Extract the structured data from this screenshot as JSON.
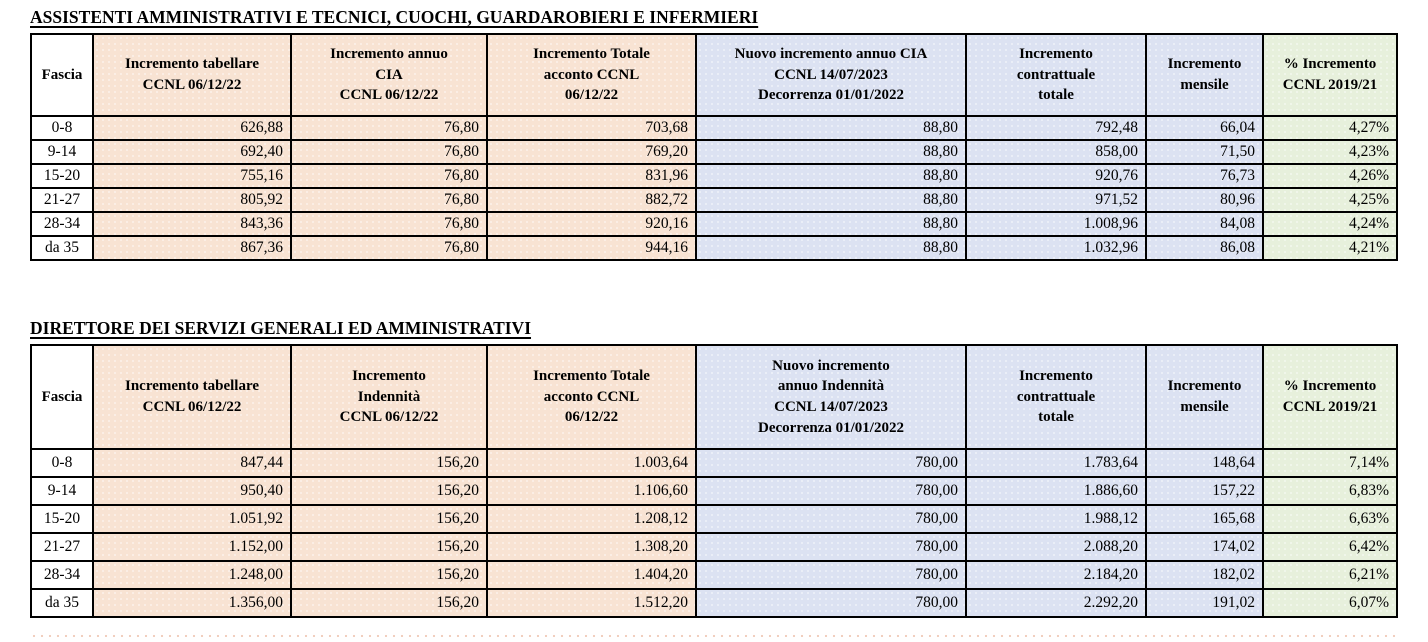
{
  "colors": {
    "peach": "#f8e3d3",
    "blue": "#dce2f2",
    "green": "#e7f0dc",
    "white": "#ffffff",
    "border": "#000000"
  },
  "tables": [
    {
      "title": "ASSISTENTI AMMINISTRATIVI E TECNICI, CUOCHI, GUARDAROBIERI E INFERMIERI",
      "columns": [
        {
          "label": "Fascia",
          "bg": "white"
        },
        {
          "label": "Incremento tabellare\nCCNL 06/12/22",
          "bg": "peach"
        },
        {
          "label": "Incremento annuo\nCIA\nCCNL 06/12/22",
          "bg": "peach"
        },
        {
          "label": "Incremento Totale\nacconto CCNL\n06/12/22",
          "bg": "peach"
        },
        {
          "label": "Nuovo incremento annuo CIA\nCCNL 14/07/2023\nDecorrenza 01/01/2022",
          "bg": "blue"
        },
        {
          "label": "Incremento\ncontrattuale\ntotale",
          "bg": "blue"
        },
        {
          "label": "Incremento\nmensile",
          "bg": "blue"
        },
        {
          "label": "% Incremento\nCCNL 2019/21",
          "bg": "green"
        }
      ],
      "rows": [
        [
          "0-8",
          "626,88",
          "76,80",
          "703,68",
          "88,80",
          "792,48",
          "66,04",
          "4,27%"
        ],
        [
          "9-14",
          "692,40",
          "76,80",
          "769,20",
          "88,80",
          "858,00",
          "71,50",
          "4,23%"
        ],
        [
          "15-20",
          "755,16",
          "76,80",
          "831,96",
          "88,80",
          "920,76",
          "76,73",
          "4,26%"
        ],
        [
          "21-27",
          "805,92",
          "76,80",
          "882,72",
          "88,80",
          "971,52",
          "80,96",
          "4,25%"
        ],
        [
          "28-34",
          "843,36",
          "76,80",
          "920,16",
          "88,80",
          "1.008,96",
          "84,08",
          "4,24%"
        ],
        [
          "da 35",
          "867,36",
          "76,80",
          "944,16",
          "88,80",
          "1.032,96",
          "86,08",
          "4,21%"
        ]
      ]
    },
    {
      "title": "DIRETTORE DEI SERVIZI GENERALI ED AMMINISTRATIVI",
      "columns": [
        {
          "label": "Fascia",
          "bg": "white"
        },
        {
          "label": "Incremento tabellare\nCCNL 06/12/22",
          "bg": "peach"
        },
        {
          "label": "Incremento\nIndennità\nCCNL 06/12/22",
          "bg": "peach"
        },
        {
          "label": "Incremento Totale\nacconto CCNL\n06/12/22",
          "bg": "peach"
        },
        {
          "label": "Nuovo incremento\nannuo Indennità\nCCNL 14/07/2023\nDecorrenza 01/01/2022",
          "bg": "blue"
        },
        {
          "label": "Incremento\ncontrattuale\ntotale",
          "bg": "blue"
        },
        {
          "label": "Incremento\nmensile",
          "bg": "blue"
        },
        {
          "label": "% Incremento\nCCNL 2019/21",
          "bg": "green"
        }
      ],
      "rows": [
        [
          "0-8",
          "847,44",
          "156,20",
          "1.003,64",
          "780,00",
          "1.783,64",
          "148,64",
          "7,14%"
        ],
        [
          "9-14",
          "950,40",
          "156,20",
          "1.106,60",
          "780,00",
          "1.886,60",
          "157,22",
          "6,83%"
        ],
        [
          "15-20",
          "1.051,92",
          "156,20",
          "1.208,12",
          "780,00",
          "1.988,12",
          "165,68",
          "6,63%"
        ],
        [
          "21-27",
          "1.152,00",
          "156,20",
          "1.308,20",
          "780,00",
          "2.088,20",
          "174,02",
          "6,42%"
        ],
        [
          "28-34",
          "1.248,00",
          "156,20",
          "1.404,20",
          "780,00",
          "2.184,20",
          "182,02",
          "6,21%"
        ],
        [
          "da 35",
          "1.356,00",
          "156,20",
          "1.512,20",
          "780,00",
          "2.292,20",
          "191,02",
          "6,07%"
        ]
      ]
    }
  ]
}
